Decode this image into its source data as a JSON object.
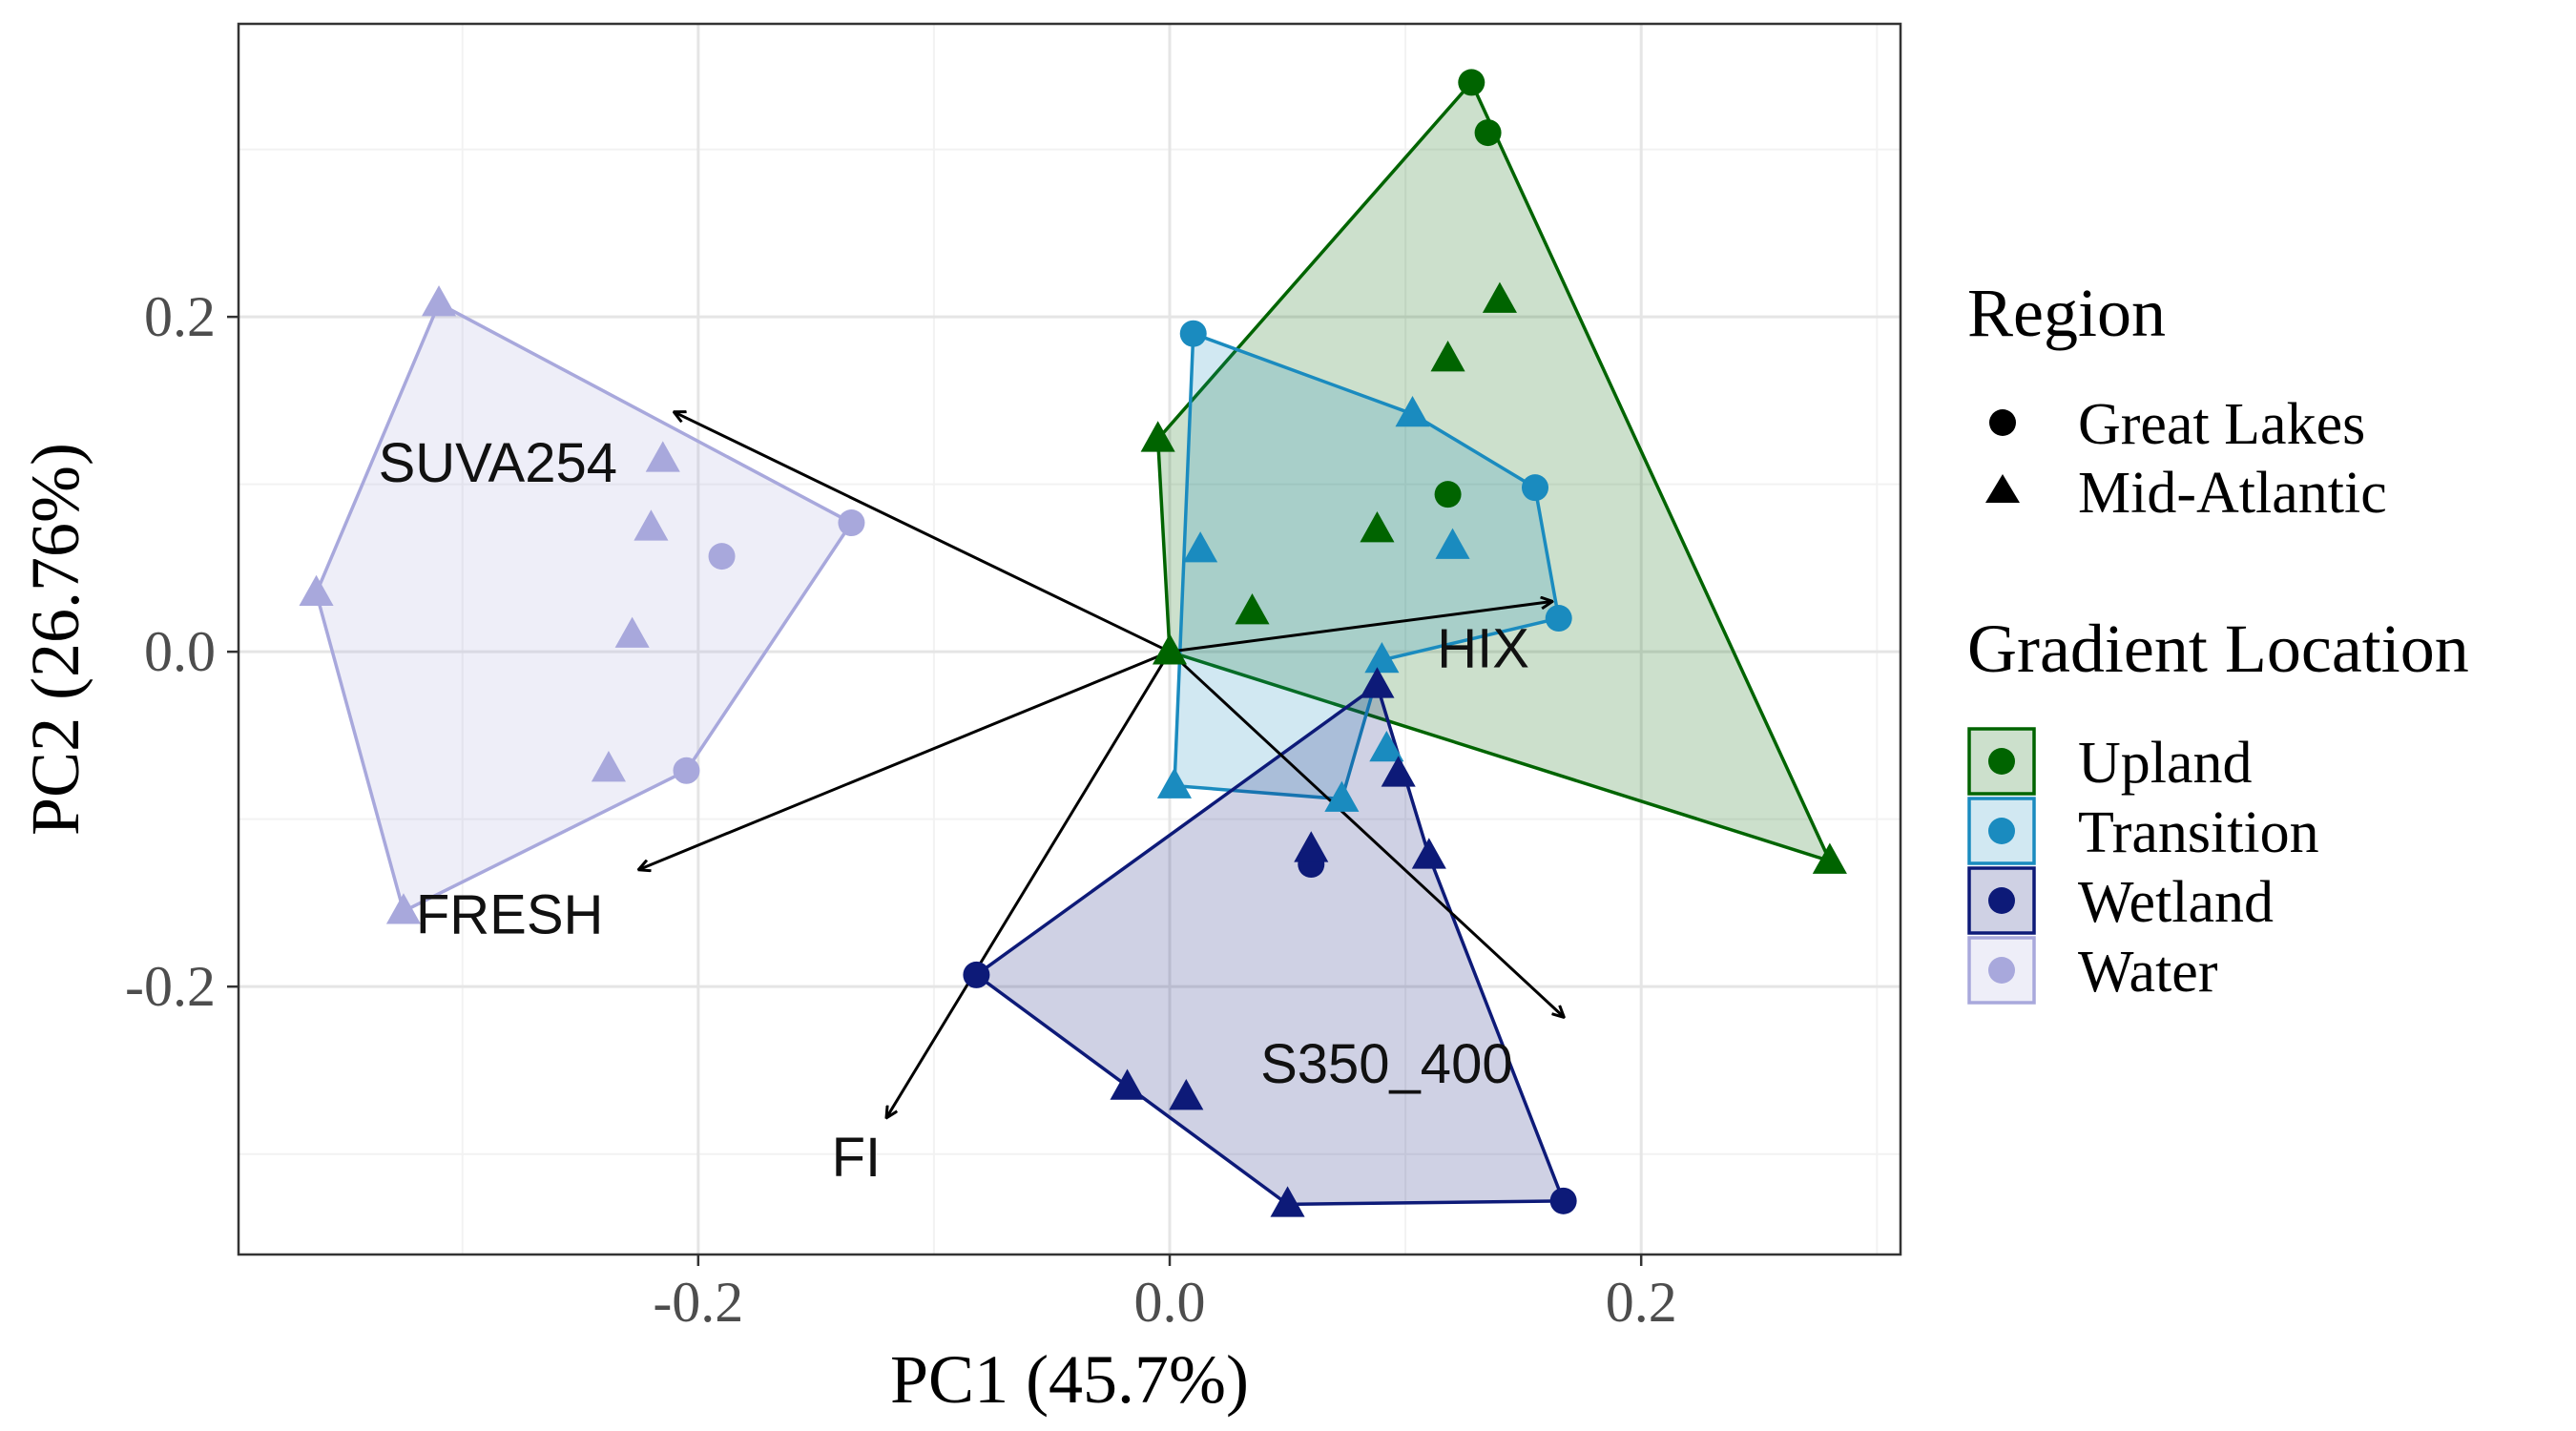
{
  "chart_data": {
    "type": "scatter",
    "title": "",
    "xlabel": "PC1 (45.7%)",
    "ylabel": "PC2 (26.76%)",
    "xlim": [
      -0.395,
      0.31
    ],
    "ylim": [
      -0.36,
      0.375
    ],
    "xticks": [
      -0.2,
      0.0,
      0.2
    ],
    "yticks": [
      -0.2,
      0.0,
      0.2
    ],
    "xtick_labels": [
      "-0.2",
      "0.0",
      "0.2"
    ],
    "ytick_labels": [
      "-0.2",
      "0.0",
      "0.2"
    ],
    "grid": true,
    "legend_placement": "right",
    "colors": {
      "Upland": "#006400",
      "Transition": "#1a8bbf",
      "Wetland": "#0d1a78",
      "Water": "#a8a8dc"
    },
    "legend": {
      "region_title": "Region",
      "region_items": [
        {
          "label": "Great Lakes",
          "shape": "circle"
        },
        {
          "label": "Mid-Atlantic",
          "shape": "triangle"
        }
      ],
      "gradient_title": "Gradient Location",
      "gradient_items": [
        "Upland",
        "Transition",
        "Wetland",
        "Water"
      ]
    },
    "hulls": [
      {
        "group": "Upland",
        "vertices": [
          [
            -0.005,
            0.127
          ],
          [
            0.128,
            0.34
          ],
          [
            0.28,
            -0.125
          ],
          [
            0.0,
            0.0
          ]
        ]
      },
      {
        "group": "Transition",
        "vertices": [
          [
            0.01,
            0.19
          ],
          [
            0.103,
            0.142
          ],
          [
            0.155,
            0.098
          ],
          [
            0.165,
            0.02
          ],
          [
            0.09,
            -0.005
          ],
          [
            0.073,
            -0.088
          ],
          [
            0.002,
            -0.08
          ]
        ]
      },
      {
        "group": "Wetland",
        "vertices": [
          [
            0.088,
            -0.02
          ],
          [
            0.11,
            -0.122
          ],
          [
            0.167,
            -0.328
          ],
          [
            0.05,
            -0.33
          ],
          [
            -0.082,
            -0.193
          ]
        ]
      },
      {
        "group": "Water",
        "vertices": [
          [
            -0.31,
            0.208
          ],
          [
            -0.135,
            0.077
          ],
          [
            -0.205,
            -0.071
          ],
          [
            -0.325,
            -0.155
          ],
          [
            -0.362,
            0.035
          ]
        ]
      }
    ],
    "series": [
      {
        "group": "Upland",
        "region": "Great Lakes",
        "points": [
          [
            0.128,
            0.34
          ],
          [
            0.135,
            0.31
          ],
          [
            0.118,
            0.094
          ]
        ]
      },
      {
        "group": "Upland",
        "region": "Mid-Atlantic",
        "points": [
          [
            -0.005,
            0.127
          ],
          [
            0.14,
            0.21
          ],
          [
            0.118,
            0.175
          ],
          [
            0.088,
            0.073
          ],
          [
            0.035,
            0.024
          ],
          [
            0.0,
            0.0
          ],
          [
            0.28,
            -0.125
          ]
        ]
      },
      {
        "group": "Transition",
        "region": "Great Lakes",
        "points": [
          [
            0.01,
            0.19
          ],
          [
            0.155,
            0.098
          ],
          [
            0.165,
            0.02
          ]
        ]
      },
      {
        "group": "Transition",
        "region": "Mid-Atlantic",
        "points": [
          [
            0.103,
            0.142
          ],
          [
            0.12,
            0.063
          ],
          [
            0.013,
            0.061
          ],
          [
            0.09,
            -0.005
          ],
          [
            0.092,
            -0.058
          ],
          [
            0.073,
            -0.088
          ],
          [
            0.002,
            -0.08
          ]
        ]
      },
      {
        "group": "Wetland",
        "region": "Great Lakes",
        "points": [
          [
            -0.082,
            -0.193
          ],
          [
            0.06,
            -0.127
          ],
          [
            0.167,
            -0.328
          ]
        ]
      },
      {
        "group": "Wetland",
        "region": "Mid-Atlantic",
        "points": [
          [
            0.088,
            -0.02
          ],
          [
            0.097,
            -0.073
          ],
          [
            0.11,
            -0.122
          ],
          [
            0.06,
            -0.118
          ],
          [
            -0.018,
            -0.26
          ],
          [
            0.007,
            -0.266
          ],
          [
            0.05,
            -0.33
          ]
        ]
      },
      {
        "group": "Water",
        "region": "Great Lakes",
        "points": [
          [
            -0.135,
            0.077
          ],
          [
            -0.19,
            0.057
          ],
          [
            -0.205,
            -0.071
          ]
        ]
      },
      {
        "group": "Water",
        "region": "Mid-Atlantic",
        "points": [
          [
            -0.31,
            0.208
          ],
          [
            -0.215,
            0.115
          ],
          [
            -0.22,
            0.074
          ],
          [
            -0.228,
            0.01
          ],
          [
            -0.362,
            0.035
          ],
          [
            -0.238,
            -0.07
          ],
          [
            -0.325,
            -0.155
          ]
        ]
      }
    ],
    "loadings": [
      {
        "label": "SUVA254",
        "x": -0.21,
        "y": 0.143,
        "label_x": -0.285,
        "label_y": 0.113
      },
      {
        "label": "HIX",
        "x": 0.162,
        "y": 0.03,
        "label_x": 0.133,
        "label_y": 0.002
      },
      {
        "label": "FRESH",
        "x": -0.225,
        "y": -0.13,
        "label_x": -0.28,
        "label_y": -0.157
      },
      {
        "label": "FI",
        "x": -0.12,
        "y": -0.278,
        "label_x": -0.133,
        "label_y": -0.302
      },
      {
        "label": "S350_400",
        "x": 0.167,
        "y": -0.218,
        "label_x": 0.092,
        "label_y": -0.246
      }
    ]
  }
}
